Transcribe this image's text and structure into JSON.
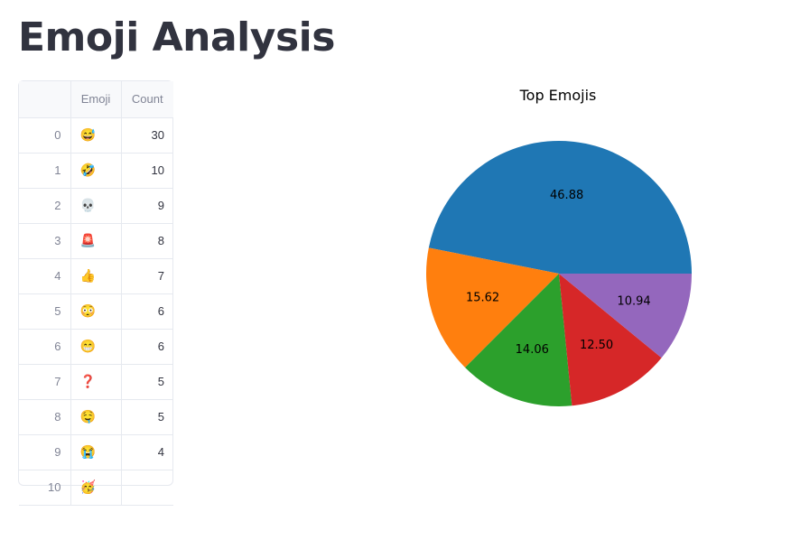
{
  "page": {
    "title": "Emoji Analysis"
  },
  "table": {
    "columns": [
      "",
      "Emoji",
      "Count"
    ],
    "rows": [
      {
        "index": "0",
        "emoji": "😅",
        "count": "30"
      },
      {
        "index": "1",
        "emoji": "🤣",
        "count": "10"
      },
      {
        "index": "2",
        "emoji": "💀",
        "count": "9"
      },
      {
        "index": "3",
        "emoji": "🚨",
        "count": "8"
      },
      {
        "index": "4",
        "emoji": "👍",
        "count": "7"
      },
      {
        "index": "5",
        "emoji": "😳",
        "count": "6"
      },
      {
        "index": "6",
        "emoji": "😁",
        "count": "6"
      },
      {
        "index": "7",
        "emoji": "❓",
        "count": "5"
      },
      {
        "index": "8",
        "emoji": "🤤",
        "count": "5"
      },
      {
        "index": "9",
        "emoji": "😭",
        "count": "4"
      },
      {
        "index": "10",
        "emoji": "🥳",
        "count": ""
      }
    ]
  },
  "chart_data": {
    "type": "pie",
    "title": "Top Emojis",
    "values": [
      46.88,
      15.62,
      14.06,
      12.5,
      10.94
    ],
    "labels": [
      "46.88",
      "15.62",
      "14.06",
      "12.50",
      "10.94"
    ],
    "colors": [
      "#1f77b4",
      "#ff7f0e",
      "#2ca02c",
      "#d62728",
      "#9467bd"
    ],
    "start_angle": 0,
    "direction": "counterclockwise"
  }
}
